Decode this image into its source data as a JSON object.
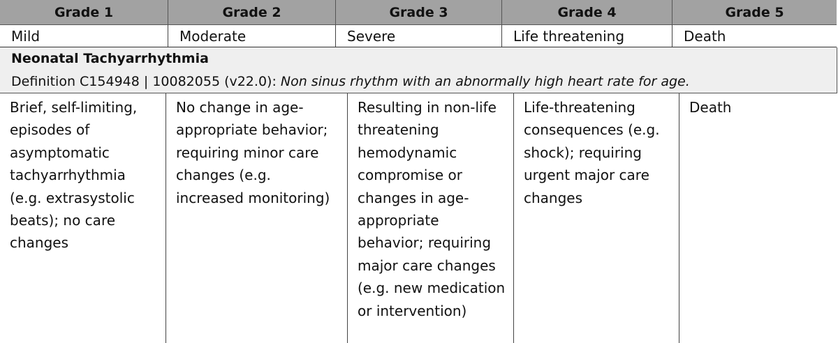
{
  "grades": [
    "Grade 1",
    "Grade 2",
    "Grade 3",
    "Grade 4",
    "Grade 5"
  ],
  "severity": [
    "Mild",
    "Moderate",
    "Severe",
    "Life threatening",
    "Death"
  ],
  "term": {
    "name": "Neonatal Tachyarrhythmia",
    "definition_prefix": "Definition C154948 | 10082055 (v22.0): ",
    "definition_text": "Non sinus rhythm with an abnormally high heart rate for age."
  },
  "descriptions": [
    "Brief, self-limiting, episodes of asymptomatic tachyarrhythmia (e.g. extrasystolic beats); no care changes",
    "No change in age-appropriate behavior; requiring minor care changes (e.g. increased monitoring)",
    "Resulting in non-life threatening hemodynamic compromise or changes in age-appropriate behavior; requiring major care changes (e.g. new medication or intervention)",
    "Life-threatening consequences (e.g. shock); requiring urgent major care changes",
    "Death"
  ],
  "cursor_icon": "text-cursor-icon"
}
